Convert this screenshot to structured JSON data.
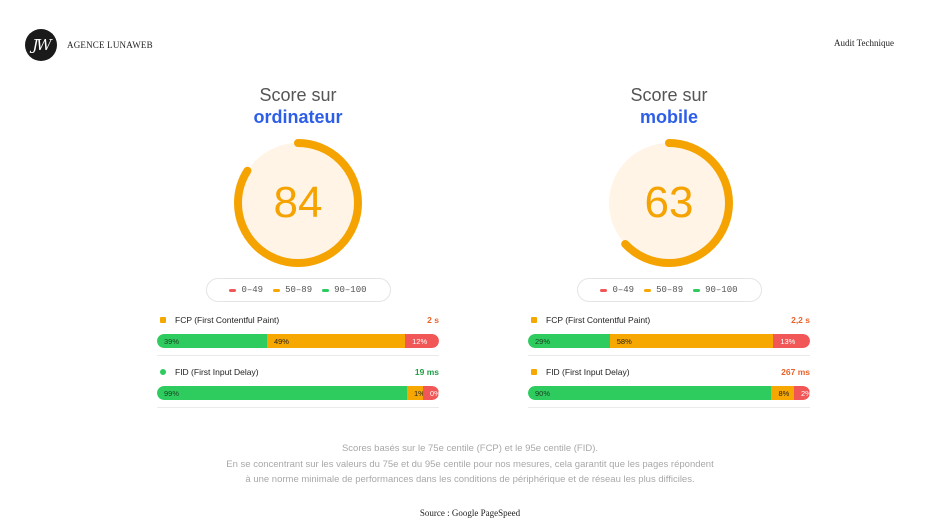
{
  "header": {
    "logo_text": "JW",
    "brand_name": "AGENCE LUNAWEB",
    "right_title": "Audit Technique"
  },
  "colors": {
    "accent_blue": "#2d5ee8",
    "score_orange": "#f5a300",
    "gauge_fill": "#fff4e6",
    "good": "#2ecc5f",
    "average": "#f7a800",
    "poor": "#f25757"
  },
  "legend": {
    "poor": "0–49",
    "average": "50–89",
    "good": "90–100"
  },
  "desktop": {
    "title_line1": "Score sur",
    "title_line2": "ordinateur",
    "score": "84",
    "score_fraction": 0.84,
    "fcp": {
      "label": "FCP (First Contentful Paint)",
      "value": "2 s",
      "value_color": "#e8632a",
      "marker": "square",
      "marker_color": "#f7a800",
      "good": 39,
      "average": 49,
      "poor": 12,
      "good_label": "39%",
      "average_label": "49%",
      "poor_label": "12%"
    },
    "fid": {
      "label": "FID (First Input Delay)",
      "value": "19 ms",
      "value_color": "#1f9d47",
      "marker": "circle",
      "marker_color": "#2ecc5f",
      "good": 99,
      "average": 1,
      "poor": 0,
      "good_label": "99%",
      "average_label": "1%",
      "poor_label": "0%"
    }
  },
  "mobile": {
    "title_line1": "Score sur",
    "title_line2": "mobile",
    "score": "63",
    "score_fraction": 0.63,
    "fcp": {
      "label": "FCP (First Contentful Paint)",
      "value": "2,2 s",
      "value_color": "#e8632a",
      "marker": "square",
      "marker_color": "#f7a800",
      "good": 29,
      "average": 58,
      "poor": 13,
      "good_label": "29%",
      "average_label": "58%",
      "poor_label": "13%"
    },
    "fid": {
      "label": "FID (First Input Delay)",
      "value": "267 ms",
      "value_color": "#e8632a",
      "marker": "square",
      "marker_color": "#f7a800",
      "good": 90,
      "average": 8,
      "poor": 2,
      "good_label": "90%",
      "average_label": "8%",
      "poor_label": "2%"
    }
  },
  "notes": {
    "line1": "Scores basés sur le 75e centile (FCP) et le 95e centile (FID).",
    "line2": "En se concentrant sur les valeurs du 75e et du 95e centile pour nos mesures, cela garantit que les pages répondent",
    "line3": "à une norme minimale de performances dans les conditions de périphérique et de réseau les plus difficiles."
  },
  "source": "Source : Google PageSpeed"
}
